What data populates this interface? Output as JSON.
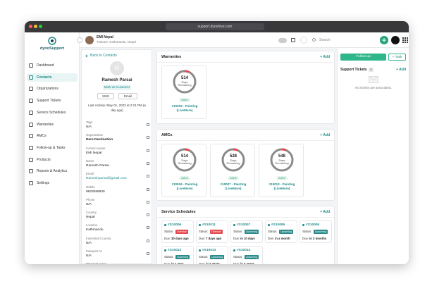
{
  "browser": {
    "url": "support.dynohive.com"
  },
  "header": {
    "logo": "dynoSupport",
    "org_name": "EMI Nepal",
    "org_location": "Tinkune, Kathmandu, Nepal",
    "search_placeholder": "Search"
  },
  "sidebar": {
    "active": 1,
    "items": [
      "Dashboard",
      "Contacts",
      "Organizations",
      "Support Tickets",
      "Service Schedules",
      "Warranties",
      "AMCs",
      "Follow-up & Tasks",
      "Products",
      "Reports & Analytics",
      "Settings"
    ]
  },
  "contact": {
    "back": "Back to Contacts",
    "initial": "R",
    "name": "Ramesh Parsai",
    "mark_button": "Mark as Customer",
    "sms": "SMS",
    "email_button": "Email",
    "last_activity": "Last Activity: May 01, 2023 at 2:21 PM (a day ago)",
    "fields": [
      {
        "label": "Tags",
        "value": "N/A"
      },
      {
        "label": "Organization",
        "value": "Nera Destination"
      },
      {
        "label": "Contact owner",
        "value": "EMI Nepal"
      },
      {
        "label": "Name",
        "value": "Ramesh Parsai"
      },
      {
        "label": "Email",
        "value": "Rameshparsai@gmail.com"
      },
      {
        "label": "Mobile",
        "value": "9823089930"
      },
      {
        "label": "Phone",
        "value": "N/A"
      },
      {
        "label": "Country",
        "value": "Nepal"
      },
      {
        "label": "Location",
        "value": "Kathmandu"
      },
      {
        "label": "Interested Country",
        "value": "N/A"
      },
      {
        "label": "Passport no",
        "value": "N/A"
      },
      {
        "label": "Personal notes",
        "value": ""
      }
    ]
  },
  "warranties": {
    "title": "Warranties",
    "add": "+ Add",
    "items": [
      {
        "days": 514,
        "days_label": "Days Remaining",
        "status": "Active",
        "name": "#10003 - Painting (LiveMore)"
      }
    ]
  },
  "amcs": {
    "title": "AMCs",
    "add": "+ Add",
    "items": [
      {
        "days": 514,
        "days_label": "Days Remaining",
        "status": "Active",
        "name": "#10004 - Painting (LiveMore)"
      },
      {
        "days": 528,
        "days_label": "Days Remaining",
        "status": "Active",
        "name": "#10007 - Painting (LiveMore)"
      },
      {
        "days": 548,
        "days_label": "Days Remaining",
        "status": "Active",
        "name": "#10013 - Painting (LiveMore)"
      }
    ]
  },
  "service_schedules": {
    "title": "Service Schedules",
    "add": "+ Add",
    "status_label": "Status:",
    "due_label": "Due:",
    "items": [
      {
        "id": "#S10006",
        "status": "Overdue",
        "color": "#e5484d",
        "due": "30 days ago"
      },
      {
        "id": "#S10011",
        "status": "Overdue",
        "color": "#e5484d",
        "due": "7 days ago"
      },
      {
        "id": "#S10007",
        "status": "Upcoming",
        "color": "#2b8a8a",
        "due": "in 10 days"
      },
      {
        "id": "#S10006",
        "status": "Upcoming",
        "color": "#2b8a8a",
        "due": "in a month"
      },
      {
        "id": "#S10005",
        "status": "Upcoming",
        "color": "#2b8a8a",
        "due": "in 2 months"
      },
      {
        "id": "#S10012",
        "status": "Upcoming",
        "color": "#2b8a8a",
        "due": "in a year"
      },
      {
        "id": "#S10013",
        "status": "Upcoming",
        "color": "#2b8a8a",
        "due": "in 2 years"
      },
      {
        "id": "#S10014",
        "status": "Upcoming",
        "color": "#2b8a8a",
        "due": "in 3 years"
      }
    ]
  },
  "right_panel": {
    "follow_up": "Follow-up",
    "task": "+ Task",
    "tickets_title": "Support Tickets",
    "tickets_count": 0,
    "add": "+ Add",
    "empty": "No tickets are associated."
  }
}
